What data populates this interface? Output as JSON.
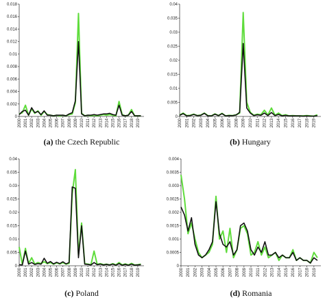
{
  "chart_data": [
    {
      "type": "line",
      "panel": "(a)",
      "title": "the Czech Republic",
      "x": [
        2000,
        2000.5,
        2001,
        2001.5,
        2002,
        2002.5,
        2003,
        2003.5,
        2004,
        2004.5,
        2005,
        2005.5,
        2006,
        2006.5,
        2007,
        2007.5,
        2008,
        2008.5,
        2009,
        2009.5,
        2010,
        2010.5,
        2011,
        2011.5,
        2012,
        2012.5,
        2013,
        2013.5,
        2014,
        2014.5,
        2015,
        2015.5,
        2016,
        2016.5,
        2017,
        2017.5,
        2018,
        2018.5,
        2019,
        2019.5
      ],
      "xlim": [
        2000,
        2020
      ],
      "xticks": [
        2000,
        2001,
        2002,
        2003,
        2004,
        2005,
        2006,
        2007,
        2008,
        2009,
        2010,
        2011,
        2012,
        2013,
        2014,
        2015,
        2016,
        2017,
        2018,
        2019
      ],
      "ylim": [
        0,
        0.018
      ],
      "yticks": [
        0,
        0.002,
        0.004,
        0.006,
        0.008,
        0.01,
        0.012,
        0.014,
        0.016,
        0.018
      ],
      "series": [
        {
          "color": "#5fdc3c",
          "values": [
            0.0004,
            0.0006,
            0.0018,
            0.0002,
            0.0012,
            0.0005,
            0.0009,
            0.0002,
            0.0008,
            0.0003,
            0.0002,
            0.0001,
            0.0002,
            0.0001,
            0.0002,
            0.0001,
            0.0003,
            0.0004,
            0.0022,
            0.0165,
            0.0005,
            0.0001,
            0.0002,
            0.0001,
            0.0002,
            0.0001,
            0.0002,
            0.0003,
            0.0002,
            0.0003,
            0.0002,
            0.0001,
            0.0024,
            0.0003,
            0.0001,
            0.0002,
            0.0011,
            0.0001,
            0.0001,
            0.0001
          ]
        },
        {
          "color": "#111111",
          "values": [
            0.0003,
            0.0008,
            0.001,
            0.0002,
            0.0014,
            0.0006,
            0.0008,
            0.0003,
            0.0009,
            0.0002,
            0.0002,
            0.0001,
            0.0002,
            0.0002,
            0.0002,
            0.0001,
            0.0004,
            0.0006,
            0.0025,
            0.012,
            0.0004,
            0.0001,
            0.0002,
            0.0002,
            0.0003,
            0.0002,
            0.0003,
            0.0004,
            0.0004,
            0.0005,
            0.0003,
            0.0002,
            0.0018,
            0.0002,
            0.0001,
            0.0002,
            0.0008,
            0.0001,
            0.0001,
            0.0001
          ]
        }
      ]
    },
    {
      "type": "line",
      "panel": "(b)",
      "title": "Hungary",
      "x": [
        2000,
        2000.5,
        2001,
        2001.5,
        2002,
        2002.5,
        2003,
        2003.5,
        2004,
        2004.5,
        2005,
        2005.5,
        2006,
        2006.5,
        2007,
        2007.5,
        2008,
        2008.5,
        2009,
        2009.5,
        2010,
        2010.5,
        2011,
        2011.5,
        2012,
        2012.5,
        2013,
        2013.5,
        2014,
        2014.5,
        2015,
        2015.5,
        2016,
        2016.5,
        2017,
        2017.5,
        2018,
        2018.5,
        2019,
        2019.5
      ],
      "xlim": [
        2000,
        2020
      ],
      "xticks": [
        2000,
        2001,
        2002,
        2003,
        2004,
        2005,
        2006,
        2007,
        2008,
        2009,
        2010,
        2011,
        2012,
        2013,
        2014,
        2015,
        2016,
        2017,
        2018,
        2019
      ],
      "ylim": [
        0,
        0.04
      ],
      "yticks": [
        0,
        0.005,
        0.01,
        0.015,
        0.02,
        0.025,
        0.03,
        0.035,
        0.04
      ],
      "series": [
        {
          "color": "#5fdc3c",
          "values": [
            0.0005,
            0.0012,
            0.0003,
            0.0004,
            0.0008,
            0.0003,
            0.0005,
            0.0012,
            0.0003,
            0.0002,
            0.0009,
            0.0003,
            0.0011,
            0.0002,
            0.0004,
            0.0003,
            0.0006,
            0.0012,
            0.037,
            0.005,
            0.0015,
            0.0004,
            0.0008,
            0.0006,
            0.0022,
            0.0005,
            0.003,
            0.0004,
            0.0012,
            0.0003,
            0.0006,
            0.0002,
            0.0003,
            0.0002,
            0.0002,
            0.0002,
            0.0003,
            0.0002,
            0.0001,
            0.0006
          ]
        },
        {
          "color": "#111111",
          "values": [
            0.0004,
            0.001,
            0.0002,
            0.0003,
            0.0007,
            0.0003,
            0.0004,
            0.0011,
            0.0002,
            0.0002,
            0.0008,
            0.0003,
            0.001,
            0.0002,
            0.0003,
            0.0003,
            0.0005,
            0.0015,
            0.026,
            0.003,
            0.0012,
            0.0003,
            0.0006,
            0.0004,
            0.0012,
            0.0003,
            0.0014,
            0.0003,
            0.0007,
            0.0002,
            0.0004,
            0.0002,
            0.0002,
            0.0002,
            0.0002,
            0.0001,
            0.0002,
            0.0001,
            0.0001,
            0.0003
          ]
        }
      ]
    },
    {
      "type": "line",
      "panel": "(c)",
      "title": "Poland",
      "x": [
        2000,
        2000.5,
        2001,
        2001.5,
        2002,
        2002.5,
        2003,
        2003.5,
        2004,
        2004.5,
        2005,
        2005.5,
        2006,
        2006.5,
        2007,
        2007.5,
        2008,
        2008.5,
        2009,
        2009.5,
        2010,
        2010.5,
        2011,
        2011.5,
        2012,
        2012.5,
        2013,
        2013.5,
        2014,
        2014.5,
        2015,
        2015.5,
        2016,
        2016.5,
        2017,
        2017.5,
        2018,
        2018.5,
        2019,
        2019.5
      ],
      "xlim": [
        2000,
        2020
      ],
      "xticks": [
        2000,
        2001,
        2002,
        2003,
        2004,
        2005,
        2006,
        2007,
        2008,
        2009,
        2010,
        2011,
        2012,
        2013,
        2014,
        2015,
        2016,
        2017,
        2018,
        2019
      ],
      "ylim": [
        0,
        0.04
      ],
      "yticks": [
        0,
        0.005,
        0.01,
        0.015,
        0.02,
        0.025,
        0.03,
        0.035,
        0.04
      ],
      "series": [
        {
          "color": "#5fdc3c",
          "values": [
            0.007,
            0.0005,
            0.0065,
            0.0008,
            0.003,
            0.0006,
            0.0012,
            0.0008,
            0.0015,
            0.0008,
            0.0012,
            0.0006,
            0.0011,
            0.0007,
            0.0012,
            0.0006,
            0.0009,
            0.027,
            0.036,
            0.004,
            0.016,
            0.0008,
            0.0006,
            0.0004,
            0.0055,
            0.0005,
            0.0008,
            0.0004,
            0.0006,
            0.0003,
            0.0008,
            0.0003,
            0.0012,
            0.0003,
            0.0007,
            0.0003,
            0.0009,
            0.0003,
            0.0004,
            0.0006
          ]
        },
        {
          "color": "#111111",
          "values": [
            0.0004,
            0.0003,
            0.0055,
            0.0006,
            0.0012,
            0.0005,
            0.0008,
            0.0006,
            0.0028,
            0.0009,
            0.0016,
            0.0007,
            0.0013,
            0.0008,
            0.0015,
            0.0007,
            0.0012,
            0.0295,
            0.029,
            0.003,
            0.015,
            0.0006,
            0.0005,
            0.0003,
            0.0012,
            0.0004,
            0.0006,
            0.0003,
            0.0005,
            0.0003,
            0.0006,
            0.0002,
            0.0008,
            0.0002,
            0.0005,
            0.0002,
            0.0006,
            0.0002,
            0.0003,
            0.0004
          ]
        }
      ]
    },
    {
      "type": "line",
      "panel": "(d)",
      "title": "Romania",
      "x": [
        2000,
        2000.5,
        2001,
        2001.5,
        2002,
        2002.5,
        2003,
        2003.5,
        2004,
        2004.5,
        2005,
        2005.5,
        2006,
        2006.5,
        2007,
        2007.5,
        2008,
        2008.5,
        2009,
        2009.5,
        2010,
        2010.5,
        2011,
        2011.5,
        2012,
        2012.5,
        2013,
        2013.5,
        2014,
        2014.5,
        2015,
        2015.5,
        2016,
        2016.5,
        2017,
        2017.5,
        2018,
        2018.5,
        2019,
        2019.5
      ],
      "xlim": [
        2000,
        2020
      ],
      "xticks": [
        2000,
        2001,
        2002,
        2003,
        2004,
        2005,
        2006,
        2007,
        2008,
        2009,
        2010,
        2011,
        2012,
        2013,
        2014,
        2015,
        2016,
        2017,
        2018,
        2019
      ],
      "ylim": [
        0,
        0.004
      ],
      "yticks": [
        0,
        0.0005,
        0.001,
        0.0015,
        0.002,
        0.0025,
        0.003,
        0.0035,
        0.004
      ],
      "series": [
        {
          "color": "#5fdc3c",
          "values": [
            0.0034,
            0.0025,
            0.0012,
            0.0016,
            0.001,
            0.0005,
            0.0003,
            0.0004,
            0.0005,
            0.0008,
            0.0026,
            0.001,
            0.0013,
            0.0005,
            0.0014,
            0.0003,
            0.0006,
            0.0014,
            0.0015,
            0.0012,
            0.0004,
            0.0005,
            0.0009,
            0.0004,
            0.0007,
            0.0003,
            0.0004,
            0.0005,
            0.0002,
            0.0004,
            0.0003,
            0.0003,
            0.0006,
            0.0002,
            0.0003,
            0.0002,
            0.0002,
            0.0001,
            0.0005,
            0.0003
          ]
        },
        {
          "color": "#111111",
          "values": [
            0.0022,
            0.0019,
            0.0013,
            0.0018,
            0.0008,
            0.0004,
            0.0003,
            0.0004,
            0.0006,
            0.0009,
            0.0024,
            0.0012,
            0.0008,
            0.0007,
            0.0009,
            0.0004,
            0.0006,
            0.0015,
            0.0016,
            0.0013,
            0.0006,
            0.0004,
            0.0007,
            0.0005,
            0.0009,
            0.0004,
            0.0004,
            0.0005,
            0.0003,
            0.0004,
            0.0003,
            0.0003,
            0.0005,
            0.0002,
            0.0003,
            0.0002,
            0.0002,
            0.0001,
            0.0003,
            0.0002
          ]
        }
      ]
    }
  ]
}
